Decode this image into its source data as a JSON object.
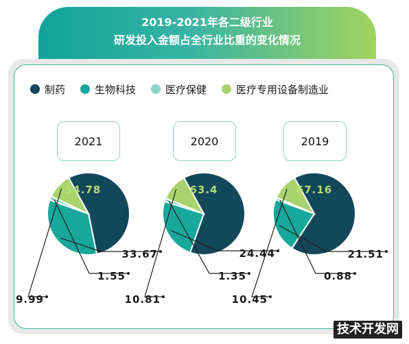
{
  "title_line1": "2019-2021年各二级行业",
  "title_line2": "研发投入金额占全行业比重的变化情况",
  "watermark": "技术开发网",
  "chart_data": {
    "type": "pie",
    "legend_position": "top",
    "legend": [
      {
        "name": "制药",
        "color": "#13475a"
      },
      {
        "name": "生物科技",
        "color": "#18a79b"
      },
      {
        "name": "医疗保健",
        "color": "#8fd4c4"
      },
      {
        "name": "医疗专用设备制造业",
        "color": "#a9d46d"
      }
    ],
    "charts": [
      {
        "year": "2021",
        "values": [
          54.78,
          33.67,
          1.55,
          9.99
        ]
      },
      {
        "year": "2020",
        "values": [
          63.4,
          24.44,
          1.35,
          10.81
        ]
      },
      {
        "year": "2019",
        "values": [
          67.16,
          21.51,
          0.88,
          10.45
        ]
      }
    ]
  }
}
